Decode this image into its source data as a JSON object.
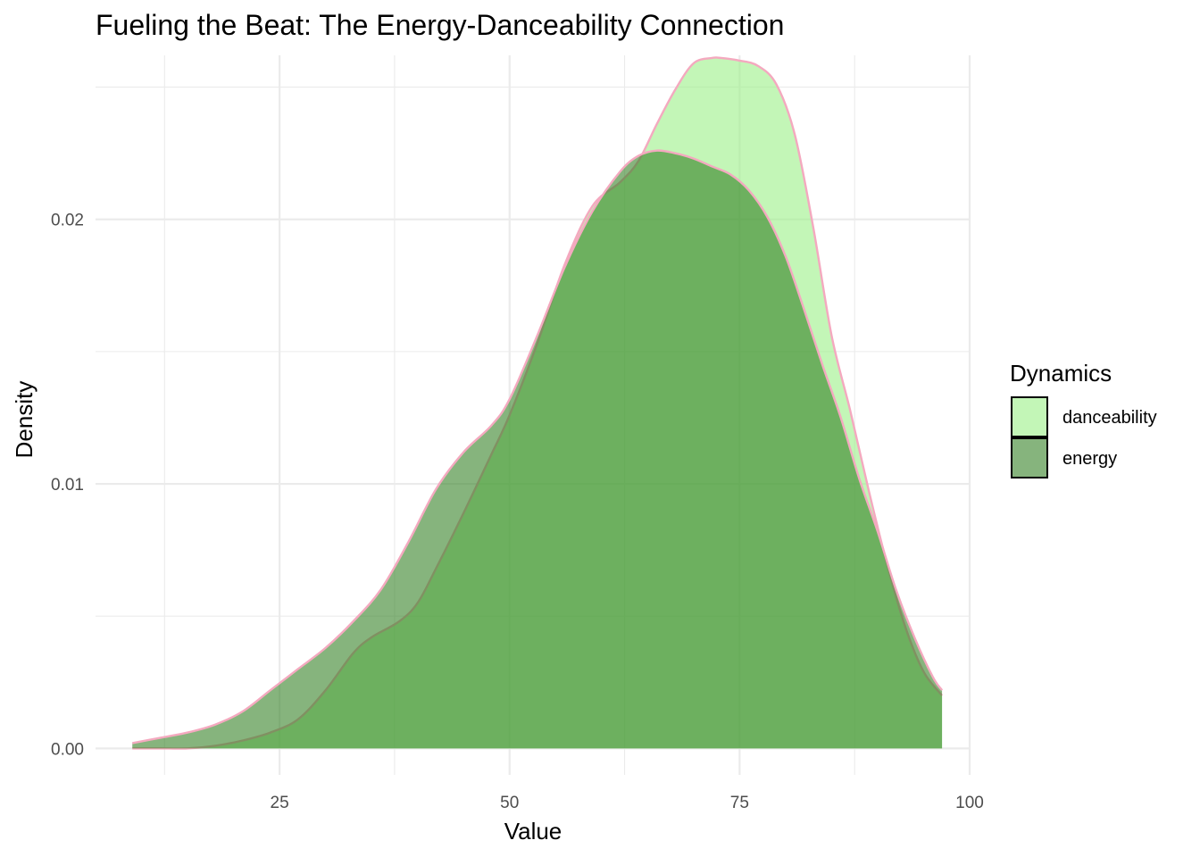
{
  "chart_data": {
    "type": "area",
    "title": "Fueling the Beat: The Energy-Danceability Connection",
    "xlabel": "Value",
    "ylabel": "Density",
    "xlim": [
      5,
      100
    ],
    "ylim": [
      -0.001,
      0.0262
    ],
    "x_ticks": [
      25,
      50,
      75,
      100
    ],
    "x_tick_labels": [
      "25",
      "50",
      "75",
      "100"
    ],
    "y_ticks": [
      0.0,
      0.01,
      0.02
    ],
    "y_tick_labels": [
      "0.00",
      "0.01",
      "0.02"
    ],
    "grid": true,
    "legend": {
      "title": "Dynamics",
      "position": "right",
      "entries": [
        "danceability",
        "energy"
      ]
    },
    "outline_color": "#f4a9bf",
    "series": [
      {
        "name": "danceability",
        "color": "#9ef08a",
        "opacity": 0.62,
        "x": [
          9,
          12,
          15,
          18,
          21,
          24,
          27,
          30,
          33,
          35,
          38,
          40,
          42,
          45,
          48,
          50,
          53,
          56,
          59,
          62,
          64,
          66,
          68,
          70,
          72,
          73,
          75,
          77,
          79,
          81,
          83,
          85,
          87,
          89,
          91,
          93,
          95,
          97
        ],
        "y": [
          0.0,
          0.0,
          0.0,
          0.0001,
          0.0003,
          0.0006,
          0.0011,
          0.0022,
          0.0036,
          0.0042,
          0.0048,
          0.0055,
          0.0068,
          0.0089,
          0.0111,
          0.0126,
          0.0153,
          0.0183,
          0.0205,
          0.0214,
          0.0222,
          0.0236,
          0.0249,
          0.0259,
          0.0261,
          0.0261,
          0.026,
          0.0258,
          0.0251,
          0.0232,
          0.0197,
          0.0156,
          0.0128,
          0.0098,
          0.007,
          0.0046,
          0.0029,
          0.002
        ]
      },
      {
        "name": "energy",
        "color": "#2e7d1f",
        "opacity": 0.58,
        "x": [
          9,
          12,
          15,
          18,
          21,
          24,
          27,
          30,
          33,
          36,
          39,
          42,
          45,
          48,
          50,
          53,
          56,
          59,
          62,
          64,
          66,
          68,
          70,
          72,
          74,
          76,
          78,
          80,
          82,
          84,
          86,
          88,
          90,
          92,
          94,
          96,
          97
        ],
        "y": [
          0.0002,
          0.0004,
          0.0006,
          0.0009,
          0.0014,
          0.0022,
          0.003,
          0.0038,
          0.0048,
          0.006,
          0.0078,
          0.0098,
          0.0112,
          0.0122,
          0.0132,
          0.0156,
          0.0182,
          0.0203,
          0.0218,
          0.0224,
          0.0226,
          0.0225,
          0.0223,
          0.022,
          0.0217,
          0.0211,
          0.0201,
          0.0186,
          0.0166,
          0.0145,
          0.0125,
          0.0102,
          0.0082,
          0.006,
          0.0042,
          0.0027,
          0.0022
        ]
      }
    ]
  }
}
